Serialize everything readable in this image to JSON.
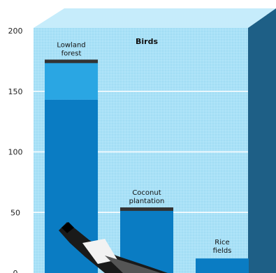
{
  "chart_data": {
    "type": "bar",
    "title": "Birds",
    "categories": [
      {
        "lines": [
          "Lowland",
          "forest"
        ]
      },
      {
        "lines": [
          "Coconut",
          "plantation"
        ]
      },
      {
        "lines": [
          "Rice",
          "fields"
        ]
      }
    ],
    "values": [
      143,
      52,
      12
    ],
    "stacked_upper": [
      174,
      null,
      null
    ],
    "marker_values": [
      175,
      53,
      null
    ],
    "ylim": [
      0,
      200
    ],
    "yticks": [
      "200",
      "150",
      "100",
      "50",
      "0"
    ],
    "grid": true,
    "colors": {
      "panel": "#a9e1f7",
      "panel_side": "#1e5f86",
      "panel_top": "#c6ecfb",
      "bar": "#0a7cc3",
      "bar_upper": "#2aa6e3",
      "marker": "#333333",
      "grid": "#ffffff"
    }
  }
}
